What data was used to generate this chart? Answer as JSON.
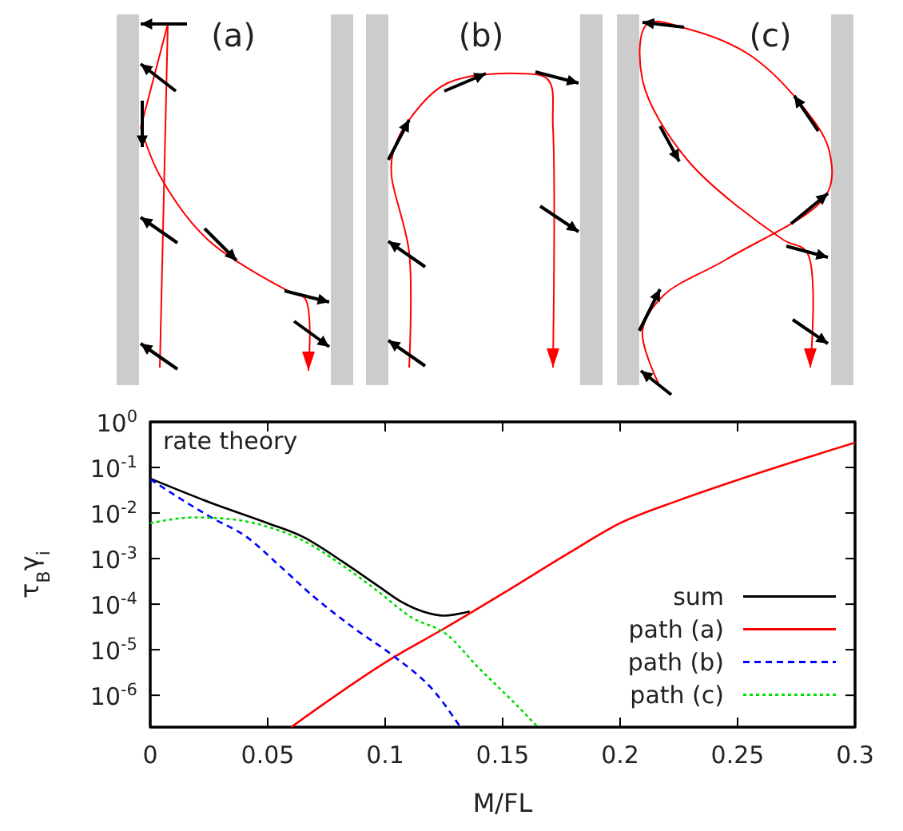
{
  "chart_data": {
    "type": "line",
    "xlabel": "M/FL",
    "ylabel": "τ$_{B}$γ$_{i}$",
    "annotations": [
      "rate theory",
      "(a)",
      "(b)",
      "(c)"
    ],
    "log": "y",
    "legend": "bottom right",
    "grid": false,
    "xlim": [
      0,
      0.3
    ],
    "xticks": [
      0,
      0.05,
      0.1,
      0.15,
      0.2,
      0.25,
      0.3
    ],
    "ylim": [
      2e-07,
      1
    ],
    "yticks": [
      {
        "value": 1e-06,
        "label": "10$^{-6}$"
      },
      {
        "value": 1e-05,
        "label": "10$^{-5}$"
      },
      {
        "value": 0.0001,
        "label": "10$^{-4}$"
      },
      {
        "value": 0.001,
        "label": "10$^{-3}$"
      },
      {
        "value": 0.01,
        "label": "10$^{-2}$"
      },
      {
        "value": 0.1,
        "label": "10$^{-1}$"
      },
      {
        "value": 1,
        "label": "10$^{0}$"
      }
    ],
    "series": [
      {
        "name": "sum",
        "color": "#000000",
        "line_style": "solid",
        "x": [
          0,
          0.026,
          0.05,
          0.065,
          0.082,
          0.097,
          0.106,
          0.116,
          0.125,
          0.136
        ],
        "values": [
          0.057,
          0.0166,
          0.006,
          0.003,
          0.00085,
          0.00025,
          0.00012,
          6.9e-05,
          5.6e-05,
          6.9e-05
        ]
      },
      {
        "name": "path (a)",
        "color": "#ff0000",
        "line_style": "solid",
        "x": [
          0.06,
          0.104,
          0.125,
          0.15,
          0.179,
          0.2,
          0.225,
          0.25,
          0.3
        ],
        "values": [
          2e-07,
          7e-06,
          2.9e-05,
          0.00017,
          0.0014,
          0.006,
          0.019,
          0.053,
          0.35
        ]
      },
      {
        "name": "path (b)",
        "color": "#0000ff",
        "line_style": "dashed",
        "x": [
          0,
          0.026,
          0.041,
          0.055,
          0.07,
          0.087,
          0.104,
          0.121,
          0.132
        ],
        "values": [
          0.055,
          0.008,
          0.003,
          0.0007,
          0.00014,
          2.9e-05,
          7e-06,
          1.2e-06,
          2e-07
        ]
      },
      {
        "name": "path (c)",
        "color": "#00dd00",
        "line_style": "dotted",
        "x": [
          0,
          0.019,
          0.0335,
          0.05,
          0.065,
          0.082,
          0.097,
          0.111,
          0.126,
          0.14,
          0.155,
          0.165
        ],
        "values": [
          0.006,
          0.008,
          0.0074,
          0.005,
          0.0025,
          0.0007,
          0.00019,
          5.2e-05,
          2.2e-05,
          3.9e-06,
          6.8e-07,
          2e-07
        ]
      }
    ]
  }
}
